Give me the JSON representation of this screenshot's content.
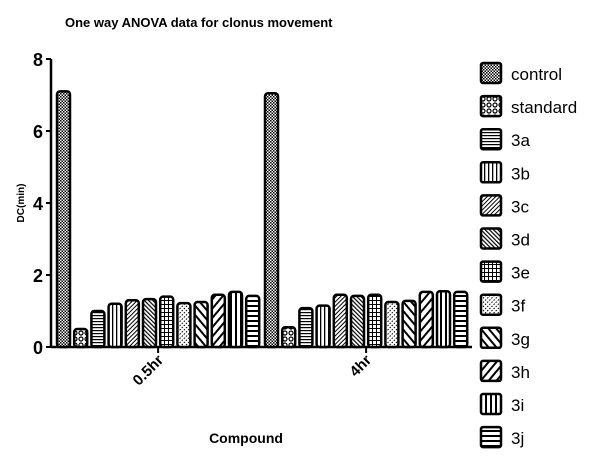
{
  "chart_data": {
    "type": "bar",
    "title": "One way ANOVA data for clonus movement",
    "xlabel": "Compound",
    "ylabel": "DC(min)",
    "ylim": [
      0,
      8
    ],
    "yticks": [
      "0",
      "2",
      "4",
      "6",
      "8"
    ],
    "categories": [
      "0.5hr",
      "4hr"
    ],
    "legend_position": "right",
    "series": [
      {
        "name": "control",
        "pattern": "dots",
        "values": [
          7.1,
          7.05
        ]
      },
      {
        "name": "standard",
        "pattern": "checker",
        "values": [
          0.5,
          0.55
        ]
      },
      {
        "name": "3a",
        "pattern": "hlines",
        "values": [
          1.0,
          1.08
        ]
      },
      {
        "name": "3b",
        "pattern": "vlines",
        "values": [
          1.2,
          1.15
        ]
      },
      {
        "name": "3c",
        "pattern": "diag-fine",
        "values": [
          1.3,
          1.45
        ]
      },
      {
        "name": "3d",
        "pattern": "back-diag-fine",
        "values": [
          1.33,
          1.42
        ]
      },
      {
        "name": "3e",
        "pattern": "grid",
        "values": [
          1.4,
          1.45
        ]
      },
      {
        "name": "3f",
        "pattern": "diag-dotted",
        "values": [
          1.22,
          1.25
        ]
      },
      {
        "name": "3g",
        "pattern": "back-diag-wide",
        "values": [
          1.25,
          1.28
        ]
      },
      {
        "name": "3h",
        "pattern": "diag-wide",
        "values": [
          1.45,
          1.53
        ]
      },
      {
        "name": "3i",
        "pattern": "vlines-thick",
        "values": [
          1.53,
          1.55
        ]
      },
      {
        "name": "3j",
        "pattern": "hlines-wide",
        "values": [
          1.42,
          1.53
        ]
      }
    ]
  }
}
